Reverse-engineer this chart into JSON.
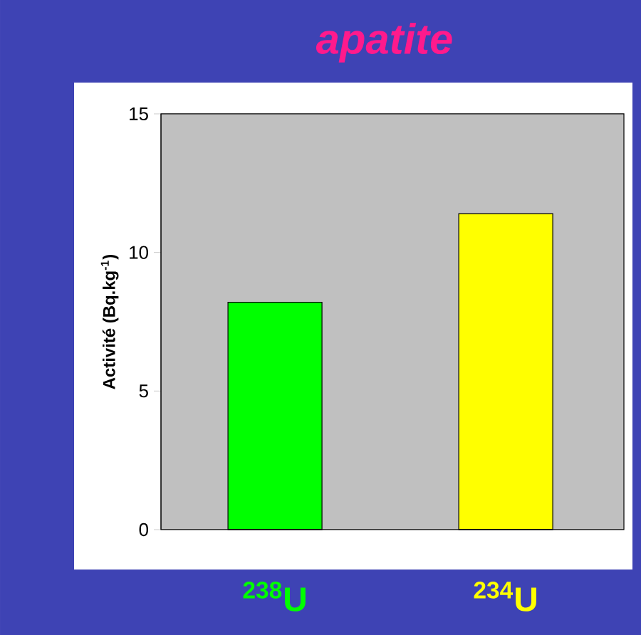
{
  "chart_data": {
    "type": "bar",
    "title": "apatite",
    "ylabel": "Activité (Bq.kg$^{-1}$)",
    "categories": [
      "$^{238}$U",
      "$^{234}$U"
    ],
    "values": [
      8.2,
      11.4
    ],
    "colors": [
      "#00ff00",
      "#ffff00"
    ],
    "ylim": [
      0,
      15
    ],
    "yticks": [
      0,
      5,
      10,
      15
    ]
  }
}
